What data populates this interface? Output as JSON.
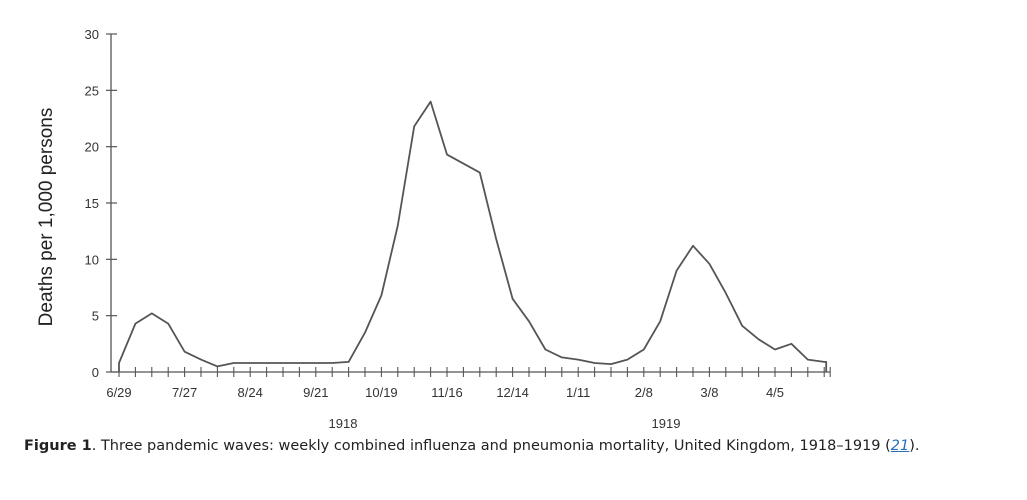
{
  "chart_data": {
    "type": "line",
    "title": "",
    "xlabel": "",
    "ylabel": "Deaths per 1,000 persons",
    "ylim": [
      0,
      30
    ],
    "yticks": [
      "0",
      "5",
      "10",
      "15",
      "20",
      "25",
      "30"
    ],
    "xtick_labels": [
      "6/29",
      "7/27",
      "8/24",
      "9/21",
      "10/19",
      "11/16",
      "12/14",
      "1/11",
      "2/8",
      "3/8",
      "4/5"
    ],
    "year_labels": [
      "1918",
      "1919"
    ],
    "grid": false,
    "values": [
      0.8,
      4.3,
      5.2,
      4.3,
      1.8,
      1.1,
      0.5,
      0.8,
      0.8,
      0.8,
      0.8,
      0.8,
      0.8,
      0.8,
      0.9,
      3.5,
      6.8,
      13,
      21.8,
      24,
      19.3,
      18.5,
      17.7,
      11.8,
      6.5,
      4.5,
      2,
      1.3,
      1.1,
      0.8,
      0.7,
      1.1,
      2,
      4.5,
      9,
      11.2,
      9.6,
      7,
      4.1,
      2.9,
      2,
      2.5,
      1.1,
      0.9
    ],
    "line_color": "#555555"
  },
  "caption": {
    "label": "Figure 1",
    "text": ". Three pandemic waves: weekly combined influenza and pneumonia mortality, United Kingdom, 1918–1919 (",
    "ref": "21",
    "end": ")."
  }
}
